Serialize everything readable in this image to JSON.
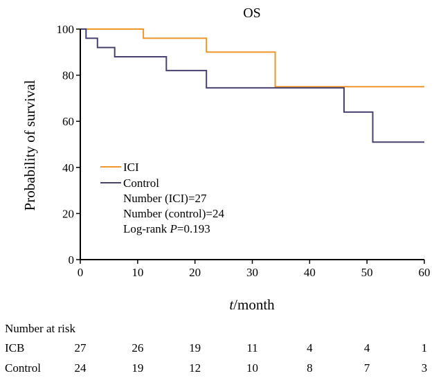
{
  "chart_data": {
    "type": "line",
    "step": true,
    "title": "OS",
    "xlabel_italic": "t",
    "xlabel_rest": "/month",
    "ylabel": "Probability of survival",
    "xlim": [
      0,
      60
    ],
    "ylim": [
      0,
      100
    ],
    "x_ticks": [
      "0",
      "10",
      "20",
      "30",
      "40",
      "50",
      "60"
    ],
    "y_ticks": [
      "0",
      "20",
      "40",
      "60",
      "80",
      "100"
    ],
    "grid": false,
    "legend_placement": "left-middle",
    "series": [
      {
        "name": "ICI",
        "color": "#f0962d",
        "points": [
          [
            0,
            100
          ],
          [
            11,
            100
          ],
          [
            11,
            96
          ],
          [
            22,
            96
          ],
          [
            22,
            90
          ],
          [
            34,
            90
          ],
          [
            34,
            75
          ],
          [
            60,
            75
          ]
        ]
      },
      {
        "name": "Control",
        "color": "#46416e",
        "points": [
          [
            0,
            100
          ],
          [
            1,
            100
          ],
          [
            1,
            96
          ],
          [
            3,
            96
          ],
          [
            3,
            92
          ],
          [
            6,
            92
          ],
          [
            6,
            88
          ],
          [
            15,
            88
          ],
          [
            15,
            82
          ],
          [
            22,
            82
          ],
          [
            22,
            74.5
          ],
          [
            46,
            74.5
          ],
          [
            46,
            64
          ],
          [
            51,
            64
          ],
          [
            51,
            51
          ],
          [
            60,
            51
          ]
        ]
      }
    ],
    "annotations": [
      "Number (ICI)=27",
      "Number (control)=24"
    ],
    "logrank_label": "Log-rank ",
    "logrank_p_italic": "P",
    "logrank_value": "=0.193"
  },
  "risk_table": {
    "header": "Number at risk",
    "rows": [
      {
        "label": "ICB",
        "values": [
          "27",
          "26",
          "19",
          "11",
          "4",
          "4",
          "1"
        ]
      },
      {
        "label": "Control",
        "values": [
          "24",
          "19",
          "12",
          "10",
          "8",
          "7",
          "3"
        ]
      }
    ]
  }
}
